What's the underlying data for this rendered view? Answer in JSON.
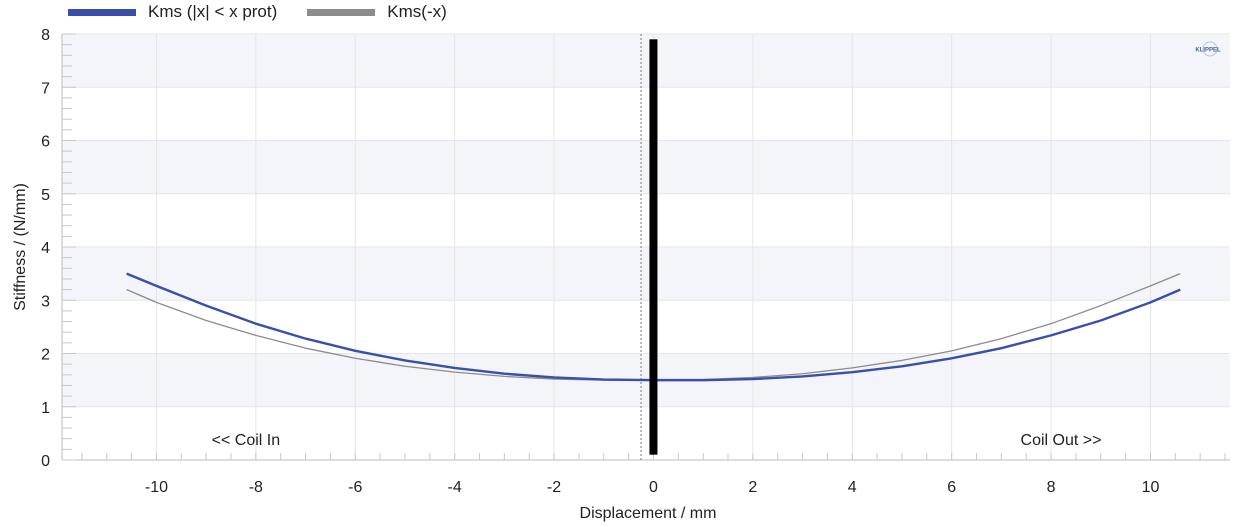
{
  "legend": [
    {
      "label": "Kms (|x| < x prot)",
      "color": "#3a4fa8"
    },
    {
      "label": "Kms(-x)",
      "color": "#8c8c8c"
    }
  ],
  "logo_text": "KLIPPEL",
  "chart_data": {
    "type": "line",
    "title": "",
    "xlabel": "Displacement / mm",
    "ylabel": "Stiffness / (N/mm)",
    "xlim": [
      -11.9,
      11.6
    ],
    "ylim": [
      0,
      8
    ],
    "x_ticks": [
      -10,
      -8,
      -6,
      -4,
      -2,
      0,
      2,
      4,
      6,
      8,
      10
    ],
    "y_ticks": [
      0,
      1,
      2,
      3,
      4,
      5,
      6,
      7,
      8
    ],
    "grid": true,
    "legend_position": "top-left",
    "series": [
      {
        "name": "Kms (|x| < x prot)",
        "color": "#3a4fa8",
        "x": [
          -10.6,
          -10,
          -9,
          -8,
          -7,
          -6,
          -5,
          -4,
          -3,
          -2,
          -1,
          0,
          1,
          2,
          3,
          4,
          5,
          6,
          7,
          8,
          9,
          10,
          10.6
        ],
        "y": [
          3.5,
          3.27,
          2.9,
          2.56,
          2.28,
          2.05,
          1.87,
          1.73,
          1.62,
          1.55,
          1.51,
          1.5,
          1.5,
          1.52,
          1.57,
          1.65,
          1.76,
          1.91,
          2.1,
          2.34,
          2.62,
          2.96,
          3.2
        ]
      },
      {
        "name": "Kms(-x)",
        "color": "#8c8c8c",
        "x": [
          -10.6,
          -10,
          -9,
          -8,
          -7,
          -6,
          -5,
          -4,
          -3,
          -2,
          -1,
          0,
          1,
          2,
          3,
          4,
          5,
          6,
          7,
          8,
          9,
          10,
          10.6
        ],
        "y": [
          3.2,
          2.96,
          2.62,
          2.34,
          2.1,
          1.91,
          1.76,
          1.65,
          1.57,
          1.52,
          1.5,
          1.5,
          1.51,
          1.55,
          1.62,
          1.73,
          1.87,
          2.05,
          2.28,
          2.56,
          2.9,
          3.27,
          3.5
        ]
      }
    ],
    "markers": [
      {
        "type": "vertical-bar",
        "x": 0,
        "y_range": [
          0.1,
          7.9
        ],
        "color": "#000000"
      },
      {
        "type": "vertical-dotted",
        "x": -0.25,
        "color": "#777777"
      }
    ],
    "annotations": [
      {
        "text": "<< Coil In",
        "x": -8.2,
        "y": 0.28
      },
      {
        "text": "Coil Out >>",
        "x": 8.2,
        "y": 0.28
      }
    ]
  }
}
